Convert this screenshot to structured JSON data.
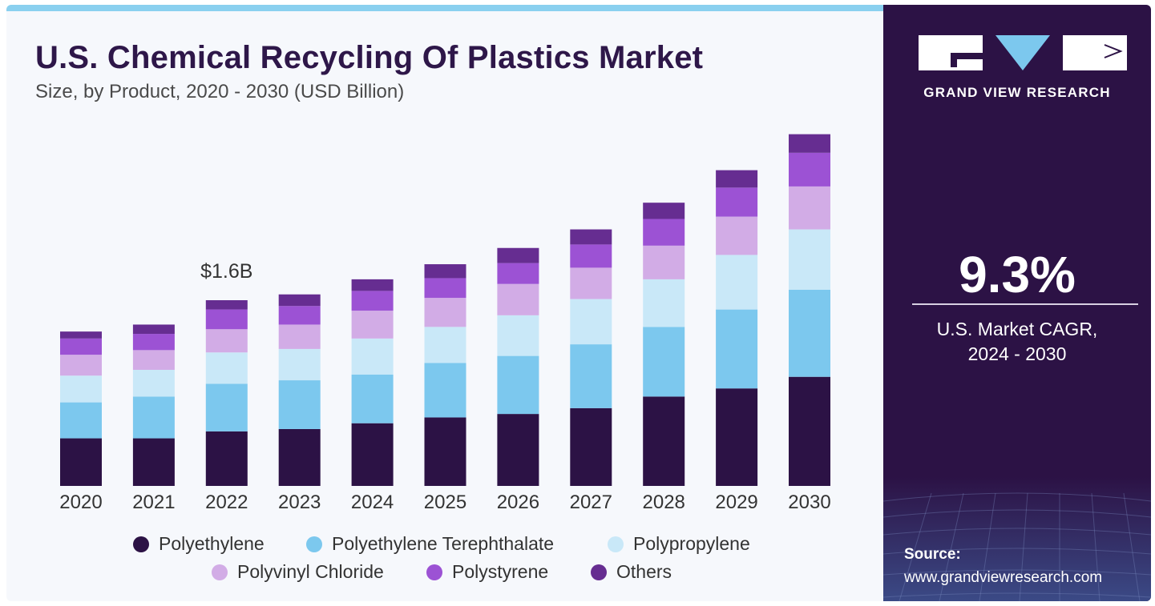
{
  "header": {
    "title": "U.S. Chemical Recycling Of Plastics Market",
    "subtitle": "Size, by Product, 2020 - 2030 (USD Billion)"
  },
  "annotation": "$1.6B",
  "legend": [
    {
      "label": "Polyethylene",
      "color": "#2c1245"
    },
    {
      "label": "Polyethylene Terephthalate",
      "color": "#7cc8ee"
    },
    {
      "label": "Polypropylene",
      "color": "#c9e8f8"
    },
    {
      "label": "Polyvinyl Chloride",
      "color": "#d2ace6"
    },
    {
      "label": "Polystyrene",
      "color": "#9c52d4"
    },
    {
      "label": "Others",
      "color": "#662d91"
    }
  ],
  "sidebar": {
    "brand": "GRAND VIEW RESEARCH",
    "cagr_value": "9.3%",
    "cagr_label_line1": "U.S. Market CAGR,",
    "cagr_label_line2": "2024 - 2030",
    "source_label": "Source:",
    "source_url": "www.grandviewresearch.com"
  },
  "chart_data": {
    "type": "bar",
    "stacked": true,
    "title": "U.S. Chemical Recycling Of Plastics Market",
    "subtitle": "Size, by Product, 2020 - 2030 (USD Billion)",
    "categories": [
      "2020",
      "2021",
      "2022",
      "2023",
      "2024",
      "2025",
      "2026",
      "2027",
      "2028",
      "2029",
      "2030"
    ],
    "unit": "USD Billion",
    "series": [
      {
        "name": "Polyethylene",
        "values": [
          0.41,
          0.41,
          0.47,
          0.49,
          0.54,
          0.59,
          0.62,
          0.67,
          0.77,
          0.84,
          0.94
        ]
      },
      {
        "name": "Polyethylene Terephthalate",
        "values": [
          0.31,
          0.36,
          0.41,
          0.42,
          0.42,
          0.47,
          0.5,
          0.55,
          0.6,
          0.68,
          0.75
        ]
      },
      {
        "name": "Polypropylene",
        "values": [
          0.23,
          0.23,
          0.27,
          0.27,
          0.31,
          0.31,
          0.35,
          0.39,
          0.41,
          0.47,
          0.52
        ]
      },
      {
        "name": "Polyvinyl Chloride",
        "values": [
          0.18,
          0.17,
          0.2,
          0.21,
          0.24,
          0.25,
          0.27,
          0.27,
          0.29,
          0.33,
          0.37
        ]
      },
      {
        "name": "Polystyrene",
        "values": [
          0.14,
          0.14,
          0.17,
          0.16,
          0.17,
          0.17,
          0.18,
          0.2,
          0.23,
          0.25,
          0.29
        ]
      },
      {
        "name": "Others",
        "values": [
          0.06,
          0.08,
          0.08,
          0.1,
          0.1,
          0.12,
          0.13,
          0.13,
          0.14,
          0.15,
          0.16
        ]
      }
    ],
    "annotations": [
      {
        "category": "2022",
        "text": "$1.6B"
      }
    ],
    "ylim": [
      0,
      3.1
    ],
    "grid": false,
    "legend_position": "bottom"
  }
}
